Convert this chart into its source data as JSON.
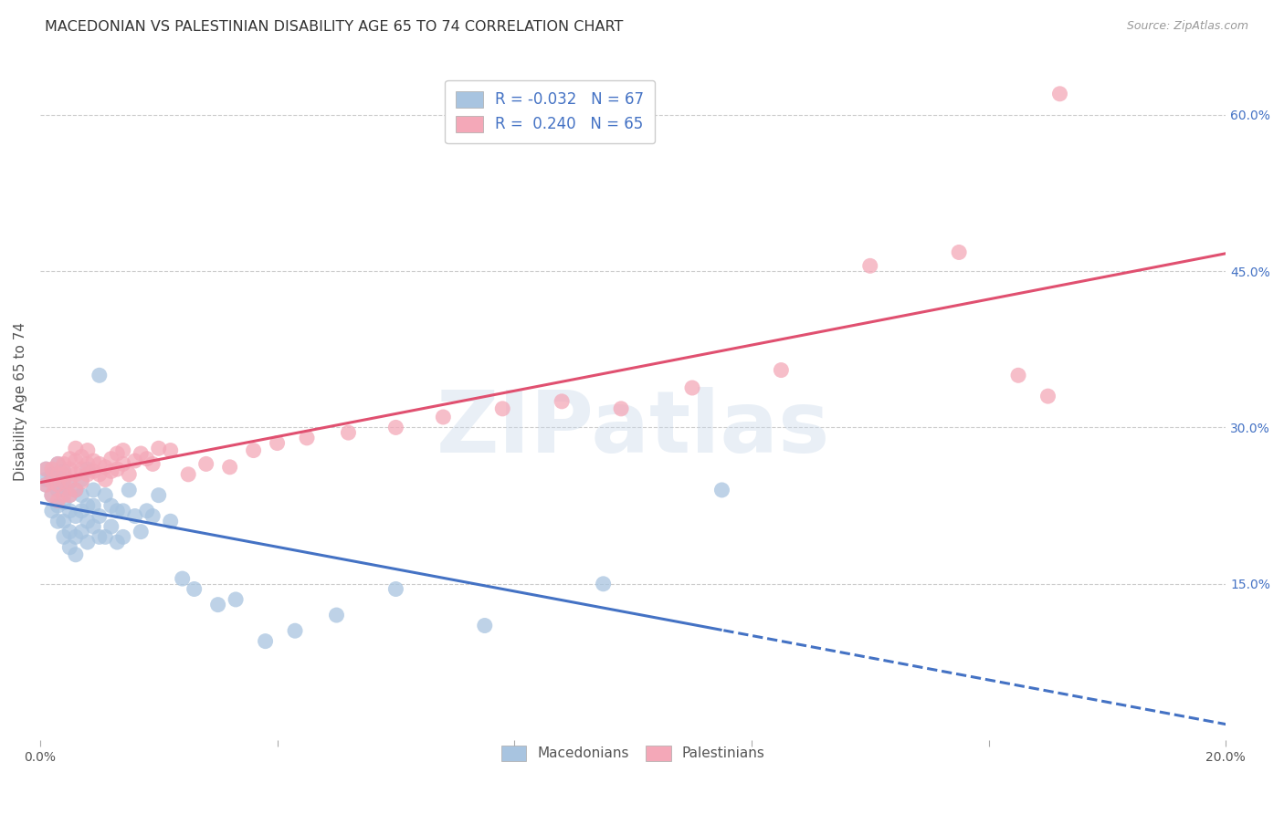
{
  "title": "MACEDONIAN VS PALESTINIAN DISABILITY AGE 65 TO 74 CORRELATION CHART",
  "source": "Source: ZipAtlas.com",
  "ylabel": "Disability Age 65 to 74",
  "xlim": [
    0.0,
    0.2
  ],
  "ylim": [
    0.0,
    0.65
  ],
  "x_ticks": [
    0.0,
    0.04,
    0.08,
    0.12,
    0.16,
    0.2
  ],
  "y_ticks_right": [
    0.15,
    0.3,
    0.45,
    0.6
  ],
  "y_tick_labels_right": [
    "15.0%",
    "30.0%",
    "45.0%",
    "60.0%"
  ],
  "macedonian_R": -0.032,
  "macedonian_N": 67,
  "palestinian_R": 0.24,
  "palestinian_N": 65,
  "macedonian_color": "#a8c4e0",
  "palestinian_color": "#f4a8b8",
  "macedonian_line_color": "#4472C4",
  "palestinian_line_color": "#E05070",
  "watermark_text": "ZIPatlas",
  "macedonian_points_x": [
    0.001,
    0.001,
    0.001,
    0.002,
    0.002,
    0.002,
    0.002,
    0.003,
    0.003,
    0.003,
    0.003,
    0.003,
    0.004,
    0.004,
    0.004,
    0.004,
    0.004,
    0.004,
    0.005,
    0.005,
    0.005,
    0.005,
    0.005,
    0.006,
    0.006,
    0.006,
    0.006,
    0.007,
    0.007,
    0.007,
    0.007,
    0.008,
    0.008,
    0.008,
    0.008,
    0.009,
    0.009,
    0.009,
    0.01,
    0.01,
    0.01,
    0.011,
    0.011,
    0.012,
    0.012,
    0.013,
    0.013,
    0.014,
    0.014,
    0.015,
    0.016,
    0.017,
    0.018,
    0.019,
    0.02,
    0.022,
    0.024,
    0.026,
    0.03,
    0.033,
    0.038,
    0.043,
    0.05,
    0.06,
    0.075,
    0.095,
    0.115
  ],
  "macedonian_points_y": [
    0.245,
    0.25,
    0.26,
    0.22,
    0.235,
    0.248,
    0.255,
    0.21,
    0.225,
    0.24,
    0.255,
    0.265,
    0.195,
    0.21,
    0.228,
    0.24,
    0.25,
    0.258,
    0.185,
    0.2,
    0.22,
    0.235,
    0.248,
    0.178,
    0.195,
    0.215,
    0.24,
    0.2,
    0.22,
    0.235,
    0.25,
    0.19,
    0.21,
    0.225,
    0.26,
    0.205,
    0.225,
    0.24,
    0.195,
    0.215,
    0.35,
    0.195,
    0.235,
    0.205,
    0.225,
    0.19,
    0.22,
    0.195,
    0.22,
    0.24,
    0.215,
    0.2,
    0.22,
    0.215,
    0.235,
    0.21,
    0.155,
    0.145,
    0.13,
    0.135,
    0.095,
    0.105,
    0.12,
    0.145,
    0.11,
    0.15,
    0.24
  ],
  "palestinian_points_x": [
    0.001,
    0.001,
    0.002,
    0.002,
    0.002,
    0.003,
    0.003,
    0.003,
    0.003,
    0.004,
    0.004,
    0.004,
    0.004,
    0.005,
    0.005,
    0.005,
    0.005,
    0.006,
    0.006,
    0.006,
    0.006,
    0.007,
    0.007,
    0.007,
    0.008,
    0.008,
    0.008,
    0.009,
    0.009,
    0.01,
    0.01,
    0.011,
    0.011,
    0.012,
    0.012,
    0.013,
    0.013,
    0.014,
    0.014,
    0.015,
    0.016,
    0.017,
    0.018,
    0.019,
    0.02,
    0.022,
    0.025,
    0.028,
    0.032,
    0.036,
    0.04,
    0.045,
    0.052,
    0.06,
    0.068,
    0.078,
    0.088,
    0.098,
    0.11,
    0.125,
    0.14,
    0.155,
    0.165,
    0.17,
    0.172
  ],
  "palestinian_points_y": [
    0.245,
    0.26,
    0.235,
    0.248,
    0.26,
    0.23,
    0.245,
    0.255,
    0.265,
    0.235,
    0.248,
    0.255,
    0.265,
    0.235,
    0.248,
    0.26,
    0.27,
    0.24,
    0.255,
    0.268,
    0.28,
    0.248,
    0.26,
    0.272,
    0.255,
    0.265,
    0.278,
    0.258,
    0.268,
    0.255,
    0.265,
    0.25,
    0.262,
    0.258,
    0.27,
    0.26,
    0.275,
    0.265,
    0.278,
    0.255,
    0.268,
    0.275,
    0.27,
    0.265,
    0.28,
    0.278,
    0.255,
    0.265,
    0.262,
    0.278,
    0.285,
    0.29,
    0.295,
    0.3,
    0.31,
    0.318,
    0.325,
    0.318,
    0.338,
    0.355,
    0.455,
    0.468,
    0.35,
    0.33,
    0.62
  ],
  "mac_line_x_solid_end": 0.115,
  "mac_line_x_dash_start": 0.115
}
